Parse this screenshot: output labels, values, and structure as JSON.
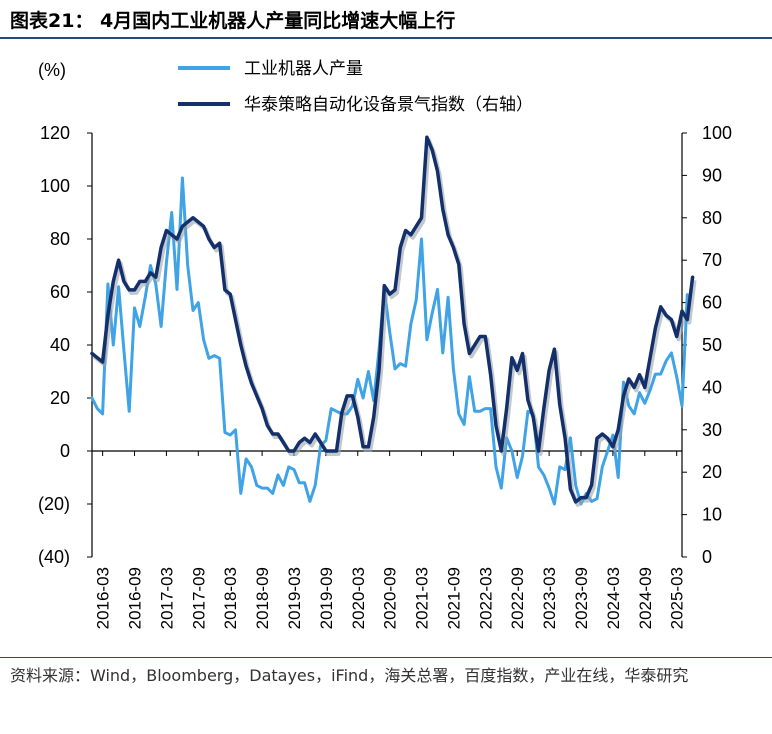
{
  "figure": {
    "title": "图表21： 4月国内工业机器人产量同比增速大幅上行",
    "source": "资料来源：Wind，Bloomberg，Datayes，iFind，海关总署，百度指数，产业在线，华泰研究"
  },
  "chart_data": {
    "type": "line",
    "left_axis_unit": "(%)",
    "ylim_left": [
      -40,
      120
    ],
    "yticks_left": [
      "(40)",
      "(20)",
      "0",
      "20",
      "40",
      "60",
      "80",
      "100",
      "120"
    ],
    "ylim_right": [
      0,
      100
    ],
    "yticks_right": [
      "0",
      "10",
      "20",
      "30",
      "40",
      "50",
      "60",
      "70",
      "80",
      "90",
      "100"
    ],
    "x_range": [
      "2016-01",
      "2025-04"
    ],
    "xtick_labels": [
      "2016-03",
      "2016-09",
      "2017-03",
      "2017-09",
      "2018-03",
      "2018-09",
      "2019-03",
      "2019-09",
      "2020-03",
      "2020-09",
      "2021-03",
      "2021-09",
      "2022-03",
      "2022-09",
      "2023-03",
      "2023-09",
      "2024-03",
      "2024-09",
      "2025-03"
    ],
    "legend_position": "top",
    "series": [
      {
        "name": "工业机器人产量",
        "axis": "left",
        "color": "#3fa3e6",
        "points": [
          [
            "2016-01",
            20
          ],
          [
            "2016-02",
            16
          ],
          [
            "2016-03",
            14
          ],
          [
            "2016-04",
            63
          ],
          [
            "2016-05",
            40
          ],
          [
            "2016-06",
            62
          ],
          [
            "2016-07",
            38
          ],
          [
            "2016-08",
            15
          ],
          [
            "2016-09",
            54
          ],
          [
            "2016-10",
            47
          ],
          [
            "2016-11",
            58
          ],
          [
            "2016-12",
            70
          ],
          [
            "2017-01",
            63
          ],
          [
            "2017-02",
            47
          ],
          [
            "2017-03",
            71
          ],
          [
            "2017-04",
            90
          ],
          [
            "2017-05",
            61
          ],
          [
            "2017-06",
            103
          ],
          [
            "2017-07",
            70
          ],
          [
            "2017-08",
            53
          ],
          [
            "2017-09",
            56
          ],
          [
            "2017-10",
            42
          ],
          [
            "2017-11",
            35
          ],
          [
            "2017-12",
            36
          ],
          [
            "2018-01",
            35
          ],
          [
            "2018-02",
            7
          ],
          [
            "2018-03",
            6
          ],
          [
            "2018-04",
            8
          ],
          [
            "2018-05",
            -16
          ],
          [
            "2018-06",
            -3
          ],
          [
            "2018-07",
            -6
          ],
          [
            "2018-08",
            -13
          ],
          [
            "2018-09",
            -14
          ],
          [
            "2018-10",
            -14
          ],
          [
            "2018-11",
            -16
          ],
          [
            "2018-12",
            -9
          ],
          [
            "2019-01",
            -13
          ],
          [
            "2019-02",
            -6
          ],
          [
            "2019-03",
            -7
          ],
          [
            "2019-04",
            -12
          ],
          [
            "2019-05",
            -12
          ],
          [
            "2019-06",
            -19
          ],
          [
            "2019-07",
            -13
          ],
          [
            "2019-08",
            2
          ],
          [
            "2019-09",
            4
          ],
          [
            "2019-10",
            16
          ],
          [
            "2019-11",
            15
          ],
          [
            "2019-12",
            14
          ],
          [
            "2020-01",
            14
          ],
          [
            "2020-02",
            17
          ],
          [
            "2020-03",
            27
          ],
          [
            "2020-04",
            20
          ],
          [
            "2020-05",
            30
          ],
          [
            "2020-06",
            19
          ],
          [
            "2020-07",
            38
          ],
          [
            "2020-08",
            61
          ],
          [
            "2020-09",
            45
          ],
          [
            "2020-10",
            31
          ],
          [
            "2020-11",
            33
          ],
          [
            "2020-12",
            32
          ],
          [
            "2021-01",
            48
          ],
          [
            "2021-02",
            57
          ],
          [
            "2021-03",
            80
          ],
          [
            "2021-04",
            42
          ],
          [
            "2021-05",
            52
          ],
          [
            "2021-06",
            61
          ],
          [
            "2021-07",
            37
          ],
          [
            "2021-08",
            58
          ],
          [
            "2021-09",
            31
          ],
          [
            "2021-10",
            14
          ],
          [
            "2021-11",
            10
          ],
          [
            "2021-12",
            28
          ],
          [
            "2022-01",
            15
          ],
          [
            "2022-02",
            15
          ],
          [
            "2022-03",
            16
          ],
          [
            "2022-04",
            16
          ],
          [
            "2022-05",
            -6
          ],
          [
            "2022-06",
            -14
          ],
          [
            "2022-07",
            5
          ],
          [
            "2022-08",
            0
          ],
          [
            "2022-09",
            -10
          ],
          [
            "2022-10",
            -2
          ],
          [
            "2022-11",
            15
          ],
          [
            "2022-12",
            14
          ],
          [
            "2023-01",
            -6
          ],
          [
            "2023-02",
            -9
          ],
          [
            "2023-03",
            -14
          ],
          [
            "2023-04",
            -20
          ],
          [
            "2023-05",
            -6
          ],
          [
            "2023-06",
            -7
          ],
          [
            "2023-07",
            5
          ],
          [
            "2023-08",
            -13
          ],
          [
            "2023-09",
            -20
          ],
          [
            "2023-10",
            -16
          ],
          [
            "2023-11",
            -19
          ],
          [
            "2023-12",
            -18
          ],
          [
            "2024-01",
            -6
          ],
          [
            "2024-02",
            0
          ],
          [
            "2024-03",
            6
          ],
          [
            "2024-04",
            -10
          ],
          [
            "2024-05",
            26
          ],
          [
            "2024-06",
            17
          ],
          [
            "2024-07",
            14
          ],
          [
            "2024-08",
            22
          ],
          [
            "2024-09",
            18
          ],
          [
            "2024-10",
            23
          ],
          [
            "2024-11",
            29
          ],
          [
            "2024-12",
            29
          ],
          [
            "2025-01",
            34
          ],
          [
            "2025-02",
            37
          ],
          [
            "2025-03",
            28
          ],
          [
            "2025-04",
            17
          ],
          [
            "2025-05",
            59
          ]
        ]
      },
      {
        "name": "华泰策略自动化设备景气指数（右轴）",
        "axis": "right",
        "color": "#13306a",
        "points": [
          [
            "2016-01",
            48
          ],
          [
            "2016-02",
            47
          ],
          [
            "2016-03",
            46
          ],
          [
            "2016-04",
            57
          ],
          [
            "2016-05",
            65
          ],
          [
            "2016-06",
            70
          ],
          [
            "2016-07",
            65
          ],
          [
            "2016-08",
            63
          ],
          [
            "2016-09",
            63
          ],
          [
            "2016-10",
            65
          ],
          [
            "2016-11",
            65
          ],
          [
            "2016-12",
            67
          ],
          [
            "2017-01",
            66
          ],
          [
            "2017-02",
            73
          ],
          [
            "2017-03",
            77
          ],
          [
            "2017-04",
            76
          ],
          [
            "2017-05",
            75
          ],
          [
            "2017-06",
            78
          ],
          [
            "2017-07",
            79
          ],
          [
            "2017-08",
            80
          ],
          [
            "2017-09",
            79
          ],
          [
            "2017-10",
            78
          ],
          [
            "2017-11",
            75
          ],
          [
            "2017-12",
            73
          ],
          [
            "2018-01",
            74
          ],
          [
            "2018-02",
            63
          ],
          [
            "2018-03",
            62
          ],
          [
            "2018-04",
            56
          ],
          [
            "2018-05",
            50
          ],
          [
            "2018-06",
            45
          ],
          [
            "2018-07",
            41
          ],
          [
            "2018-08",
            38
          ],
          [
            "2018-09",
            35
          ],
          [
            "2018-10",
            31
          ],
          [
            "2018-11",
            29
          ],
          [
            "2018-12",
            29
          ],
          [
            "2019-01",
            27
          ],
          [
            "2019-02",
            25
          ],
          [
            "2019-03",
            25
          ],
          [
            "2019-04",
            27
          ],
          [
            "2019-05",
            28
          ],
          [
            "2019-06",
            27
          ],
          [
            "2019-07",
            29
          ],
          [
            "2019-08",
            27
          ],
          [
            "2019-09",
            25
          ],
          [
            "2019-10",
            25
          ],
          [
            "2019-11",
            25
          ],
          [
            "2019-12",
            34
          ],
          [
            "2020-01",
            38
          ],
          [
            "2020-02",
            38
          ],
          [
            "2020-03",
            33
          ],
          [
            "2020-04",
            26
          ],
          [
            "2020-05",
            26
          ],
          [
            "2020-06",
            33
          ],
          [
            "2020-07",
            44
          ],
          [
            "2020-08",
            64
          ],
          [
            "2020-09",
            62
          ],
          [
            "2020-10",
            63
          ],
          [
            "2020-11",
            73
          ],
          [
            "2020-12",
            77
          ],
          [
            "2021-01",
            76
          ],
          [
            "2021-02",
            78
          ],
          [
            "2021-03",
            80
          ],
          [
            "2021-04",
            99
          ],
          [
            "2021-05",
            96
          ],
          [
            "2021-06",
            91
          ],
          [
            "2021-07",
            82
          ],
          [
            "2021-08",
            76
          ],
          [
            "2021-09",
            73
          ],
          [
            "2021-10",
            69
          ],
          [
            "2021-11",
            55
          ],
          [
            "2021-12",
            48
          ],
          [
            "2022-01",
            50
          ],
          [
            "2022-02",
            52
          ],
          [
            "2022-03",
            52
          ],
          [
            "2022-04",
            43
          ],
          [
            "2022-05",
            31
          ],
          [
            "2022-06",
            25
          ],
          [
            "2022-07",
            35
          ],
          [
            "2022-08",
            47
          ],
          [
            "2022-09",
            44
          ],
          [
            "2022-10",
            48
          ],
          [
            "2022-11",
            37
          ],
          [
            "2022-12",
            33
          ],
          [
            "2023-01",
            25
          ],
          [
            "2023-02",
            35
          ],
          [
            "2023-03",
            44
          ],
          [
            "2023-04",
            49
          ],
          [
            "2023-05",
            36
          ],
          [
            "2023-06",
            28
          ],
          [
            "2023-07",
            16
          ],
          [
            "2023-08",
            13
          ],
          [
            "2023-09",
            14
          ],
          [
            "2023-10",
            14
          ],
          [
            "2023-11",
            17
          ],
          [
            "2023-12",
            28
          ],
          [
            "2024-01",
            29
          ],
          [
            "2024-02",
            28
          ],
          [
            "2024-03",
            26
          ],
          [
            "2024-04",
            30
          ],
          [
            "2024-05",
            38
          ],
          [
            "2024-06",
            42
          ],
          [
            "2024-07",
            40
          ],
          [
            "2024-08",
            43
          ],
          [
            "2024-09",
            40
          ],
          [
            "2024-10",
            47
          ],
          [
            "2024-11",
            54
          ],
          [
            "2024-12",
            59
          ],
          [
            "2025-01",
            57
          ],
          [
            "2025-02",
            56
          ],
          [
            "2025-03",
            52
          ],
          [
            "2025-04",
            58
          ],
          [
            "2025-05",
            56
          ],
          [
            "2025-06",
            66
          ]
        ]
      }
    ]
  }
}
